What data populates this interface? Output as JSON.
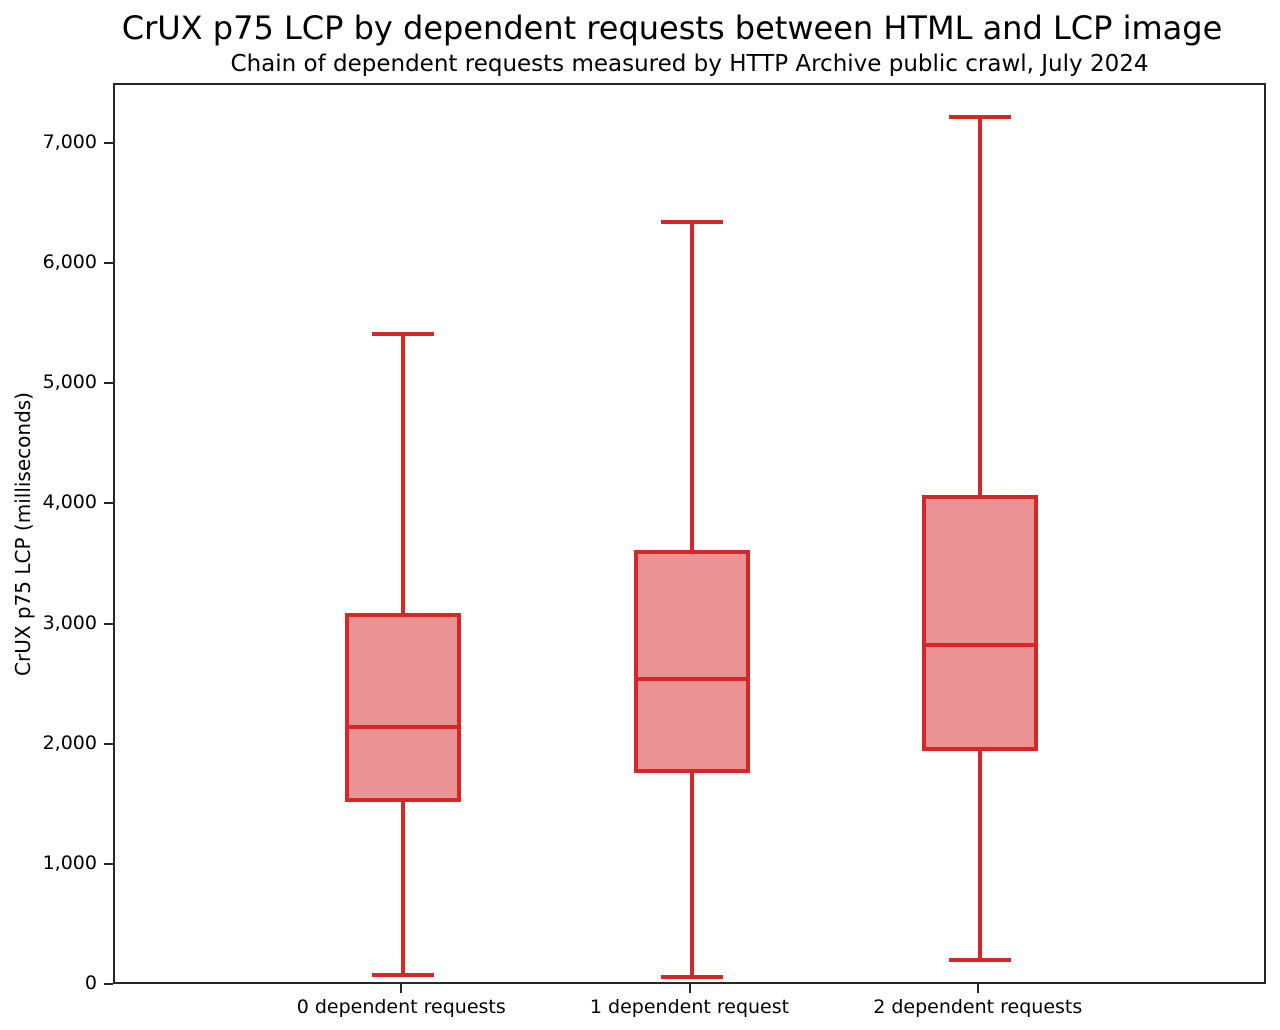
{
  "title": "CrUX p75 LCP by dependent requests between HTML and LCP image",
  "subtitle": "Chain of dependent requests measured by HTTP Archive public crawl, July 2024",
  "y_axis": {
    "label": "CrUX p75 LCP (milliseconds)",
    "min": 0,
    "max": 7500,
    "ticks": [
      {
        "value": 0,
        "label": "0"
      },
      {
        "value": 1000,
        "label": "1,000"
      },
      {
        "value": 2000,
        "label": "2,000"
      },
      {
        "value": 3000,
        "label": "3,000"
      },
      {
        "value": 4000,
        "label": "4,000"
      },
      {
        "value": 5000,
        "label": "5,000"
      },
      {
        "value": 6000,
        "label": "6,000"
      },
      {
        "value": 7000,
        "label": "7,000"
      }
    ]
  },
  "chart_data": {
    "type": "boxplot",
    "title": "CrUX p75 LCP by dependent requests between HTML and LCP image",
    "subtitle": "Chain of dependent requests measured by HTTP Archive public crawl, July 2024",
    "ylabel": "CrUX p75 LCP (milliseconds)",
    "ylim": [
      0,
      7500
    ],
    "grid": false,
    "categories": [
      "0 dependent requests",
      "1 dependent request",
      "2 dependent requests"
    ],
    "series": [
      {
        "category": "0 dependent requests",
        "whisker_low": 90,
        "q1": 1545,
        "median": 2155,
        "q3": 3090,
        "whisker_high": 5425
      },
      {
        "category": "1 dependent request",
        "whisker_low": 75,
        "q1": 1790,
        "median": 2555,
        "q3": 3615,
        "whisker_high": 6360
      },
      {
        "category": "2 dependent requests",
        "whisker_low": 220,
        "q1": 1970,
        "median": 2840,
        "q3": 4070,
        "whisker_high": 7230
      }
    ],
    "colors": {
      "box_edge": "#d62728",
      "box_fill": "#ea9394",
      "median": "#d62728",
      "whisker": "#d62728",
      "spine": "#262626"
    }
  }
}
